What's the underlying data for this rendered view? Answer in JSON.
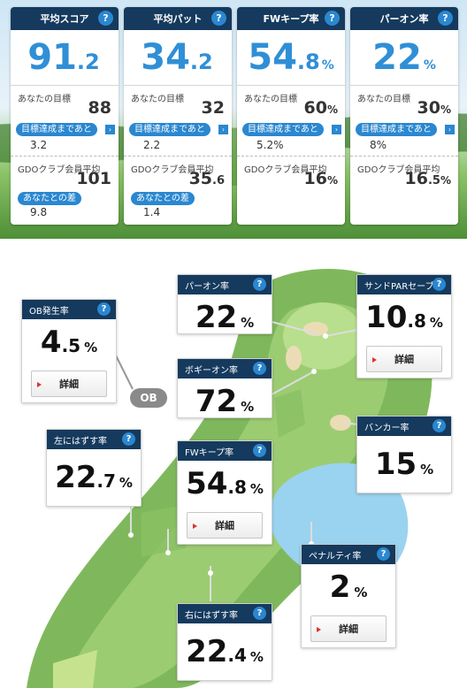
{
  "summary": [
    {
      "title": "平均スコア",
      "int": "91",
      "dec": ".2",
      "pct": "",
      "goal_label": "あなたの目標",
      "goal_int": "88",
      "goal_dec": "",
      "goal_pct": "",
      "remain_label": "目標達成まであと",
      "remain_value": "3.2",
      "avg_label": "GDOクラブ会員平均",
      "avg_int": "101",
      "avg_dec": "",
      "avg_pct": "",
      "diff_label": "あなたとの差",
      "diff_value": "9.8"
    },
    {
      "title": "平均パット",
      "int": "34",
      "dec": ".2",
      "pct": "",
      "goal_label": "あなたの目標",
      "goal_int": "32",
      "goal_dec": "",
      "goal_pct": "",
      "remain_label": "目標達成まであと",
      "remain_value": "2.2",
      "avg_label": "GDOクラブ会員平均",
      "avg_int": "35",
      "avg_dec": ".6",
      "avg_pct": "",
      "diff_label": "あなたとの差",
      "diff_value": "1.4"
    },
    {
      "title": "FWキープ率",
      "int": "54",
      "dec": ".8",
      "pct": "%",
      "goal_label": "あなたの目標",
      "goal_int": "60",
      "goal_dec": "",
      "goal_pct": "%",
      "remain_label": "目標達成まであと",
      "remain_value": "5.2%",
      "avg_label": "GDOクラブ会員平均",
      "avg_int": "16",
      "avg_dec": "",
      "avg_pct": "%"
    },
    {
      "title": "パーオン率",
      "int": "22",
      "dec": "",
      "pct": "%",
      "goal_label": "あなたの目標",
      "goal_int": "30",
      "goal_dec": "",
      "goal_pct": "%",
      "remain_label": "目標達成まであと",
      "remain_value": "8%",
      "avg_label": "GDOクラブ会員平均",
      "avg_int": "16",
      "avg_dec": ".5",
      "avg_pct": "%"
    }
  ],
  "help_icon": "?",
  "arrow_icon": "›",
  "detail_label": "詳細",
  "ob_tag": "OB",
  "map": {
    "ob": {
      "title": "OB発生率",
      "int": "4",
      "dec": ".5",
      "pct": "%"
    },
    "par_on": {
      "title": "パーオン率",
      "int": "22",
      "dec": "",
      "pct": "%"
    },
    "bogey_on": {
      "title": "ボギーオン率",
      "int": "72",
      "dec": "",
      "pct": "%"
    },
    "sand_par": {
      "title": "サンドPARセーブ率",
      "int": "10",
      "dec": ".8",
      "pct": "%"
    },
    "bunker": {
      "title": "バンカー率",
      "int": "15",
      "dec": "",
      "pct": "%"
    },
    "left_miss": {
      "title": "左にはずす率",
      "int": "22",
      "dec": ".7",
      "pct": "%"
    },
    "fw_keep": {
      "title": "FWキープ率",
      "int": "54",
      "dec": ".8",
      "pct": "%"
    },
    "penalty": {
      "title": "ペナルティ率",
      "int": "2",
      "dec": "",
      "pct": "%"
    },
    "right_miss": {
      "title": "右にはずす率",
      "int": "22",
      "dec": ".4",
      "pct": "%"
    }
  },
  "colors": {
    "header": "#153a5e",
    "accent": "#2f8fd6",
    "pill": "#2a87d0"
  }
}
